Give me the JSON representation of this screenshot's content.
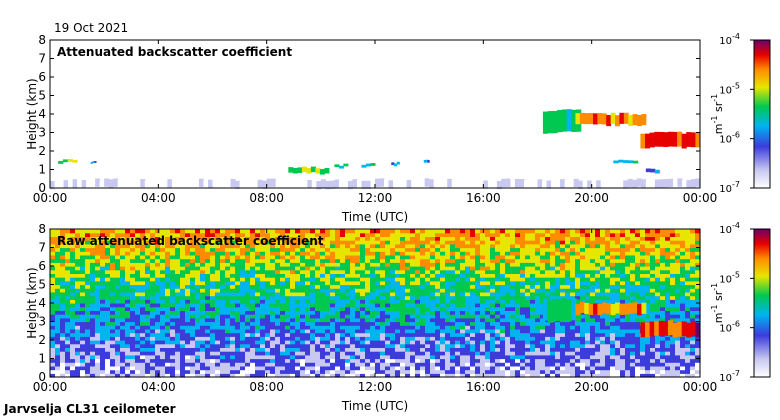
{
  "date": "19 Oct 2021",
  "footer": "Jarvselja CL31 ceilometer",
  "chart_data": [
    {
      "type": "heatmap",
      "title": "Attenuated backscatter coefficient",
      "xlabel": "Time (UTC)",
      "ylabel": "Height (km)",
      "xlim": [
        0,
        24
      ],
      "ylim": [
        0,
        8
      ],
      "x_ticks": [
        "00:00",
        "04:00",
        "08:00",
        "12:00",
        "16:00",
        "20:00",
        "00:00"
      ],
      "y_ticks": [
        "0",
        "1",
        "2",
        "3",
        "4",
        "5",
        "6",
        "7",
        "8"
      ],
      "colorbar": {
        "label": "m-1 sr-1",
        "min": "10-7",
        "max": "10-4",
        "ticks": [
          "10-4",
          "10-5",
          "10-6",
          "10-7"
        ]
      },
      "background": "clean",
      "features": [
        {
          "name": "surface layer",
          "t_start": 0,
          "t_end": 24,
          "h_bottom": 0.0,
          "h_top": 0.45,
          "level": 0.05
        },
        {
          "name": "cloud 0.5h",
          "t_start": 0.3,
          "t_end": 1.0,
          "h_bottom": 1.35,
          "h_top": 1.5,
          "level": 0.55
        },
        {
          "name": "cloud 1.5h",
          "t_start": 1.5,
          "t_end": 1.7,
          "h_bottom": 1.3,
          "h_top": 1.4,
          "level": 0.35
        },
        {
          "name": "cloud 9h",
          "t_start": 8.8,
          "t_end": 10.3,
          "h_bottom": 0.8,
          "h_top": 1.1,
          "level": 0.55
        },
        {
          "name": "cloud 10.5h",
          "t_start": 10.5,
          "t_end": 11.0,
          "h_bottom": 1.1,
          "h_top": 1.25,
          "level": 0.45
        },
        {
          "name": "cloud 11.5h",
          "t_start": 11.5,
          "t_end": 12.0,
          "h_bottom": 1.15,
          "h_top": 1.3,
          "level": 0.5
        },
        {
          "name": "cloud 12.7h",
          "t_start": 12.6,
          "t_end": 12.9,
          "h_bottom": 1.2,
          "h_top": 1.35,
          "level": 0.35
        },
        {
          "name": "cloud 14h",
          "t_start": 13.8,
          "t_end": 14.0,
          "h_bottom": 1.35,
          "h_top": 1.5,
          "level": 0.35
        },
        {
          "name": "high cloud 18-19h",
          "t_start": 18.2,
          "t_end": 19.6,
          "h_bottom": 3.0,
          "h_top": 4.2,
          "level": 0.5
        },
        {
          "name": "high cloud 19.5-22h",
          "t_start": 19.4,
          "t_end": 22.0,
          "h_bottom": 3.4,
          "h_top": 4.0,
          "level": 0.75
        },
        {
          "name": "cloud band 22-24h",
          "t_start": 21.8,
          "t_end": 24.0,
          "h_bottom": 2.2,
          "h_top": 3.0,
          "level": 0.85
        },
        {
          "name": "low cloud 21h",
          "t_start": 20.8,
          "t_end": 21.7,
          "h_bottom": 1.4,
          "h_top": 1.55,
          "level": 0.4
        },
        {
          "name": "low cloud 22h",
          "t_start": 22.0,
          "t_end": 22.5,
          "h_bottom": 0.8,
          "h_top": 1.0,
          "level": 0.3
        }
      ]
    },
    {
      "type": "heatmap",
      "title": "Raw attenuated backscatter coefficient",
      "xlabel": "Time (UTC)",
      "ylabel": "Height (km)",
      "xlim": [
        0,
        24
      ],
      "ylim": [
        0,
        8
      ],
      "x_ticks": [
        "00:00",
        "04:00",
        "08:00",
        "12:00",
        "16:00",
        "20:00",
        "00:00"
      ],
      "y_ticks": [
        "0",
        "1",
        "2",
        "3",
        "4",
        "5",
        "6",
        "7",
        "8"
      ],
      "colorbar": {
        "label": "m-1 sr-1",
        "min": "10-7",
        "max": "10-4",
        "ticks": [
          "10-4",
          "10-5",
          "10-6",
          "10-7"
        ]
      },
      "background": "noisy",
      "features": [
        {
          "name": "high cloud 18-19h",
          "t_start": 18.2,
          "t_end": 19.6,
          "h_bottom": 3.0,
          "h_top": 4.2,
          "level": 0.5
        },
        {
          "name": "high cloud 19.5-22h",
          "t_start": 19.4,
          "t_end": 22.0,
          "h_bottom": 3.4,
          "h_top": 4.0,
          "level": 0.75
        },
        {
          "name": "cloud band 22-24h",
          "t_start": 21.8,
          "t_end": 24.0,
          "h_bottom": 2.2,
          "h_top": 3.0,
          "level": 0.85
        }
      ]
    }
  ]
}
